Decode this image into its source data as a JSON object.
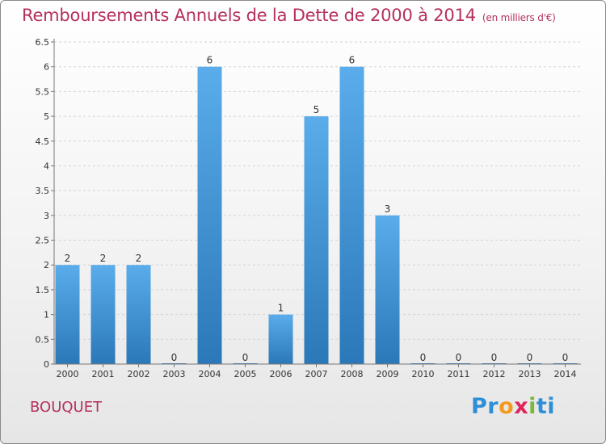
{
  "chart_data": {
    "type": "bar",
    "title": "Remboursements Annuels de la Dette de 2000 à 2014",
    "unit_label": "(en milliers d'€)",
    "categories": [
      "2000",
      "2001",
      "2002",
      "2003",
      "2004",
      "2005",
      "2006",
      "2007",
      "2008",
      "2009",
      "2010",
      "2011",
      "2012",
      "2013",
      "2014"
    ],
    "values": [
      2,
      2,
      2,
      0,
      6,
      0,
      1,
      5,
      6,
      3,
      0,
      0,
      0,
      0,
      0
    ],
    "value_labels": [
      "2",
      "2",
      "2",
      "0",
      "6",
      "0",
      "1",
      "5",
      "6",
      "3",
      "0",
      "0",
      "0",
      "0",
      "0"
    ],
    "y_ticks": [
      "0",
      "0.5",
      "1",
      "1.5",
      "2",
      "2.5",
      "3",
      "3.5",
      "4",
      "4.5",
      "5",
      "5.5",
      "6",
      "6.5"
    ],
    "ylim": [
      0,
      6.5
    ],
    "xlabel": "",
    "ylabel": "",
    "bar_color": "#4d9fdd"
  },
  "commune": "BOUQUET",
  "logo": {
    "letters": [
      "P",
      "r",
      "o",
      "x",
      "i",
      "t",
      "i"
    ],
    "colors": [
      "#2f8fd6",
      "#2f8fd6",
      "#f39a1e",
      "#e0245e",
      "#7ab83a",
      "#2f8fd6",
      "#2f8fd6"
    ]
  }
}
